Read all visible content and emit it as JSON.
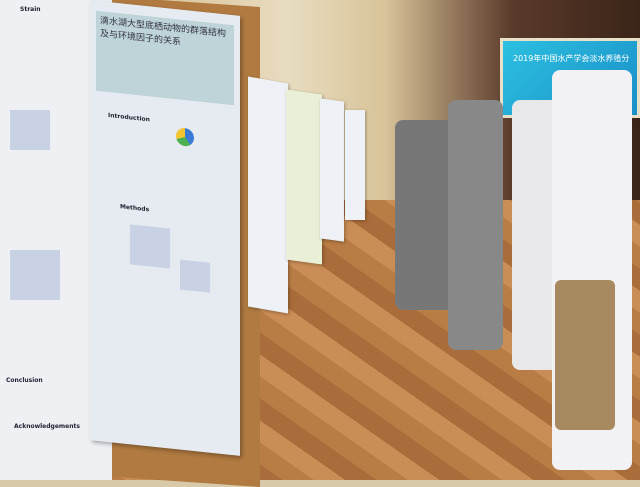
{
  "screen": {
    "title": "2019年中国水产学会淡水养殖分"
  },
  "poster_left": {
    "header": "Strain",
    "sections": [
      "Conclusion",
      "Acknowledgements"
    ]
  },
  "poster_main": {
    "title": "滴水湖大型底栖动物的群落结构及与环境因子的关系",
    "sections": [
      "Introduction",
      "Methods"
    ]
  },
  "colors": {
    "wood": "#b07a40",
    "screen": "#2cc0e0",
    "floor": "#b97c45"
  }
}
